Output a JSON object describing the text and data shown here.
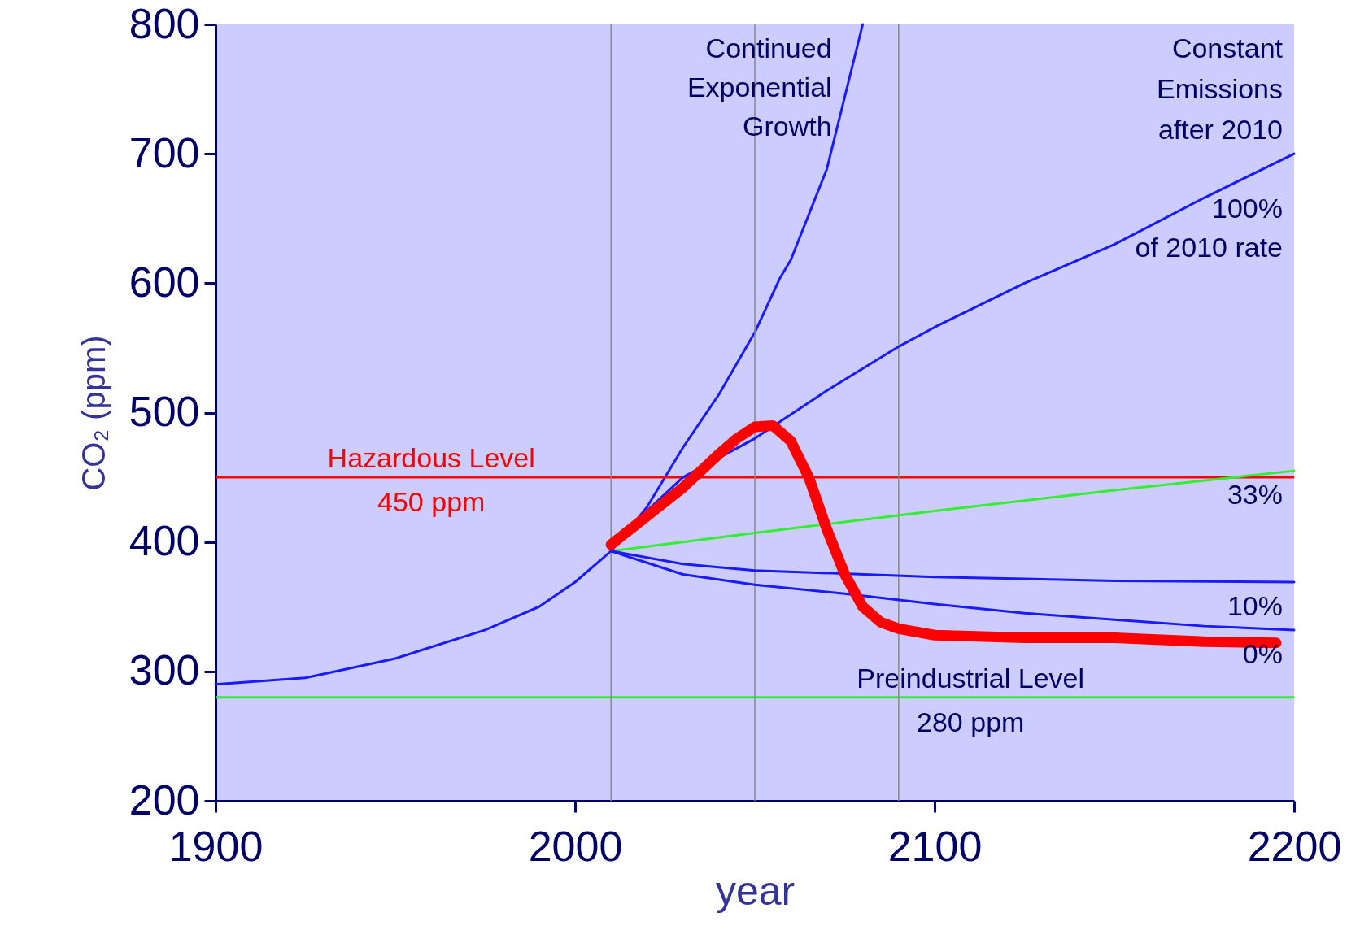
{
  "chart_data": {
    "type": "line",
    "xlabel": "year",
    "ylabel": "CO₂ (ppm)",
    "xlim": [
      1900,
      2200
    ],
    "ylim": [
      200,
      800
    ],
    "xticks": [
      1900,
      2000,
      2100,
      2200
    ],
    "yticks": [
      200,
      300,
      400,
      500,
      600,
      700,
      800
    ],
    "grid": false,
    "marker": "none",
    "line_style": "solid",
    "series": [
      {
        "name": "Continued\nExponential\nGrowth",
        "color": "#1a1aff",
        "x": [
          1900,
          1925,
          1950,
          1975,
          1990,
          2000,
          2010,
          2020,
          2030,
          2040,
          2050,
          2057,
          2060,
          2070,
          2080
        ],
        "values": [
          290,
          295,
          310,
          332,
          350,
          369,
          393,
          427,
          473,
          514,
          562,
          604,
          618,
          688,
          800
        ]
      },
      {
        "name": "100%\nof 2010 rate",
        "color": "#1a1aff",
        "x": [
          2010,
          2020,
          2030,
          2050,
          2070,
          2090,
          2100,
          2125,
          2150,
          2175,
          2200
        ],
        "values": [
          393,
          424,
          450,
          480,
          517,
          551,
          566,
          600,
          630,
          666,
          700
        ]
      },
      {
        "name": "33%",
        "color": "#33ee33",
        "x": [
          2010,
          2050,
          2100,
          2150,
          2200
        ],
        "values": [
          393,
          407,
          424,
          440,
          455
        ]
      },
      {
        "name": "10%",
        "color": "#1a1aff",
        "x": [
          2010,
          2030,
          2050,
          2100,
          2150,
          2200
        ],
        "values": [
          393,
          383,
          378,
          373,
          370,
          369
        ]
      },
      {
        "name": "0%",
        "color": "#1a1aff",
        "x": [
          2010,
          2030,
          2050,
          2075,
          2100,
          2125,
          2150,
          2175,
          2200
        ],
        "values": [
          393,
          375,
          367,
          360,
          352,
          345,
          340,
          335,
          332
        ]
      },
      {
        "color": "#ff0000",
        "x": [
          2010,
          2020,
          2030,
          2040,
          2045,
          2050,
          2055,
          2060,
          2065,
          2070,
          2075,
          2080,
          2085,
          2090,
          2100,
          2125,
          2150,
          2175,
          2195
        ],
        "values": [
          398,
          420,
          442,
          468,
          480,
          489,
          490,
          478,
          450,
          410,
          375,
          350,
          338,
          333,
          328,
          326,
          326,
          323,
          322
        ]
      }
    ],
    "ref_lines": [
      {
        "axis": "y",
        "value": 450,
        "label": "Hazardous Level\n450 ppm",
        "color": "#ff0000"
      },
      {
        "axis": "y",
        "value": 280,
        "label": "Preindustrial Level\n280 ppm",
        "color": "#33ee33"
      },
      {
        "axis": "x",
        "value": 2010,
        "color": "#888888"
      },
      {
        "axis": "x",
        "value": 2050,
        "color": "#888888"
      },
      {
        "axis": "x",
        "value": 2090,
        "color": "#888888"
      }
    ],
    "annotations": [
      "Constant\nEmissions\nafter 2010"
    ]
  }
}
